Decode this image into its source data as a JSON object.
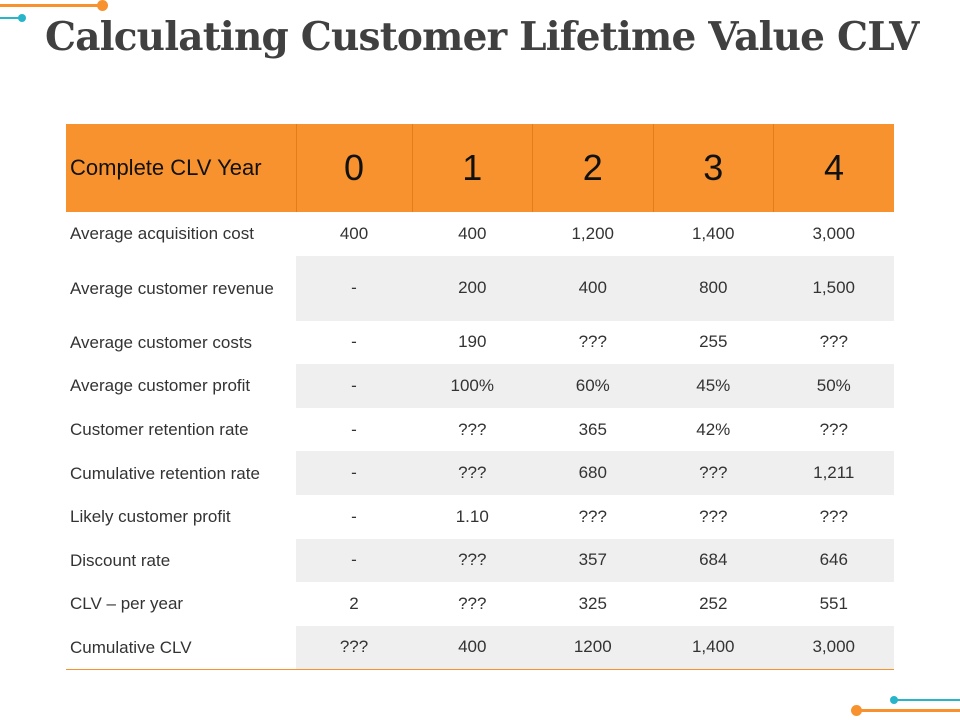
{
  "title": "Calculating Customer Lifetime Value CLV",
  "colors": {
    "accent_orange": "#f7922f",
    "accent_teal": "#29b5c9"
  },
  "table": {
    "header_label": "Complete CLV Year",
    "years": [
      "0",
      "1",
      "2",
      "3",
      "4"
    ],
    "rows": [
      {
        "label": "Average acquisition cost",
        "values": [
          "400",
          "400",
          "1,200",
          "1,400",
          "3,000"
        ]
      },
      {
        "label": "Average customer revenue",
        "values": [
          "-",
          "200",
          "400",
          "800",
          "1,500"
        ]
      },
      {
        "label": "Average customer costs",
        "values": [
          "-",
          "190",
          "???",
          "255",
          "???"
        ]
      },
      {
        "label": "Average customer profit",
        "values": [
          "-",
          "100%",
          "60%",
          "45%",
          "50%"
        ]
      },
      {
        "label": "Customer retention rate",
        "values": [
          "-",
          "???",
          "365",
          "42%",
          "???"
        ]
      },
      {
        "label": "Cumulative retention rate",
        "values": [
          "-",
          "???",
          "680",
          "???",
          "1,211"
        ]
      },
      {
        "label": "Likely customer profit",
        "values": [
          "-",
          "1.10",
          "???",
          "???",
          "???"
        ]
      },
      {
        "label": "Discount rate",
        "values": [
          "-",
          "???",
          "357",
          "684",
          "646"
        ]
      },
      {
        "label": "CLV – per year",
        "values": [
          "2",
          "???",
          "325",
          "252",
          "551"
        ]
      },
      {
        "label": "Cumulative CLV",
        "values": [
          "???",
          "400",
          "1200",
          "1,400",
          "3,000"
        ]
      }
    ]
  }
}
